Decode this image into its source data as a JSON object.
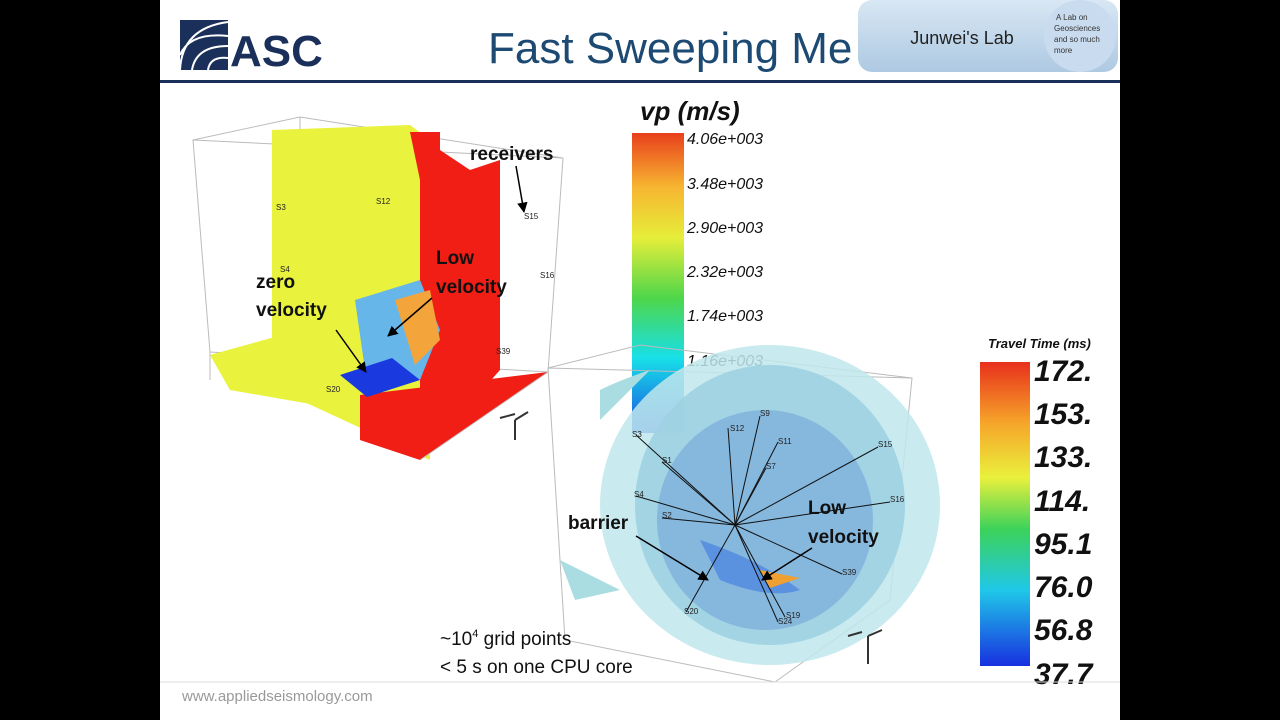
{
  "header": {
    "logo": "ASC",
    "title": "Fast Sweeping Me",
    "lab_name": "Junwei's Lab",
    "lab_tagline": [
      "A Lab on",
      "Geosciences",
      "and so much",
      "more"
    ]
  },
  "left_figure": {
    "colorbar_title": "vp (m/s)",
    "colorbar_labels": [
      "4.06e+003",
      "3.48e+003",
      "2.90e+003",
      "2.32e+003",
      "1.74e+003",
      "1.16e+003"
    ],
    "annotations": {
      "receivers": "receivers",
      "zero_velocity": [
        "zero",
        "velocity"
      ],
      "low_velocity": [
        "Low",
        "velocity"
      ]
    },
    "stations": [
      "S3",
      "S12",
      "S15",
      "S16",
      "S4",
      "S39",
      "S20"
    ]
  },
  "right_figure": {
    "colorbar_title": "Travel Time (ms)",
    "colorbar_labels": [
      "172.",
      "153.",
      "133.",
      "114.",
      "95.1",
      "76.0",
      "56.8",
      "37.7"
    ],
    "annotations": {
      "barrier": "barrier",
      "low_velocity": [
        "Low",
        "velocity"
      ]
    },
    "stations": [
      "S3",
      "S12",
      "S9",
      "S11",
      "S15",
      "S1",
      "S7",
      "S4",
      "S16",
      "S2",
      "S39",
      "S19",
      "S24",
      "S20"
    ]
  },
  "notes": {
    "grid_prefix": "~10",
    "grid_exponent": "4",
    "grid_suffix": " grid points",
    "timing": "< 5 s on one CPU core"
  },
  "footer": {
    "url": "www.appliedseismology.com"
  }
}
